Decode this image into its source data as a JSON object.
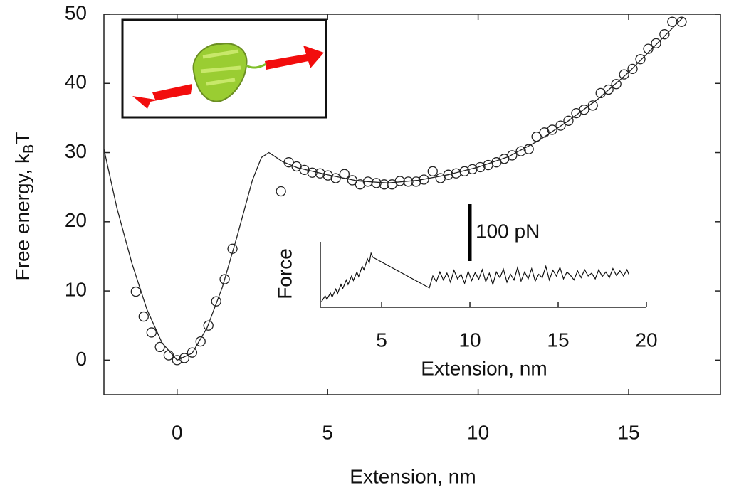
{
  "chart_data": [
    {
      "type": "scatter",
      "xlabel": "Extension, nm",
      "ylabel_parts": [
        "Free energy, k",
        "B",
        "T"
      ],
      "xlim": [
        -2.43,
        18.05
      ],
      "ylim": [
        -5,
        50
      ],
      "xticks": [
        0,
        5,
        10,
        15
      ],
      "yticks": [
        0,
        10,
        20,
        30,
        40,
        50
      ],
      "color": "#222222",
      "series": [
        {
          "type": "scatter",
          "x": [
            -1.37,
            -1.11,
            -0.85,
            -0.57,
            -0.28,
            0,
            0.24,
            0.5,
            0.78,
            1.04,
            1.3,
            1.58,
            1.84,
            3.45,
            3.71,
            3.97,
            4.23,
            4.49,
            4.75,
            5.01,
            5.27,
            5.56,
            5.82,
            6.08,
            6.34,
            6.62,
            6.88,
            7.14,
            7.4,
            7.68,
            7.94,
            8.2,
            8.49,
            8.75,
            9.01,
            9.27,
            9.55,
            9.81,
            10.07,
            10.33,
            10.61,
            10.87,
            11.13,
            11.42,
            11.68,
            11.94,
            12.2,
            12.46,
            12.74,
            13.0,
            13.26,
            13.52,
            13.81,
            14.07,
            14.33,
            14.59,
            14.85,
            15.13,
            15.39,
            15.65,
            15.91,
            16.19,
            16.45,
            16.76
          ],
          "values": [
            9.9,
            6.3,
            4.0,
            1.9,
            0.7,
            0,
            0.3,
            1.1,
            2.7,
            5.0,
            8.5,
            11.7,
            16.1,
            24.4,
            28.6,
            28.0,
            27.5,
            27.1,
            27.0,
            26.7,
            26.3,
            26.9,
            26.0,
            25.4,
            25.8,
            25.6,
            25.4,
            25.4,
            25.9,
            25.8,
            25.8,
            26.1,
            27.3,
            26.3,
            26.8,
            27.0,
            27.3,
            27.6,
            27.9,
            28.2,
            28.6,
            29.1,
            29.6,
            30.2,
            30.5,
            32.3,
            32.9,
            33.3,
            33.9,
            34.6,
            35.7,
            36.2,
            36.8,
            38.6,
            39.1,
            39.9,
            41.3,
            42.1,
            43.5,
            45.0,
            45.8,
            47.1,
            48.9,
            48.9
          ]
        },
        {
          "type": "line",
          "x": [
            -2.43,
            -2.0,
            -1.5,
            -1.0,
            -0.5,
            0,
            0.5,
            1.0,
            1.5,
            2.0,
            2.5,
            2.8,
            3.05,
            3.5,
            4.0,
            5.0,
            6.0,
            7.0,
            8.0,
            9.0,
            10.0,
            11.0,
            12.0,
            13.0,
            14.0,
            15.0,
            16.0,
            16.8
          ],
          "values": [
            30.5,
            22,
            14,
            7.3,
            2.5,
            0,
            1.0,
            4.7,
            10.5,
            18,
            26,
            29.3,
            30,
            28.7,
            27.8,
            26.8,
            25.9,
            25.6,
            26.0,
            26.8,
            27.9,
            29.4,
            31.7,
            34.6,
            37.8,
            41.6,
            46.0,
            49.5
          ]
        }
      ]
    },
    {
      "type": "line",
      "xlabel": "Extension, nm",
      "ylabel": "Force",
      "xlim": [
        1.53,
        20
      ],
      "ylim": [
        0,
        115
      ],
      "xticks": [
        5,
        10,
        15,
        20
      ],
      "scale_bar": {
        "value": 100,
        "label": "100 pN"
      },
      "color": "#111111",
      "x": [
        1.6,
        1.8,
        1.9,
        2.1,
        2.2,
        2.4,
        2.5,
        2.7,
        2.8,
        3.0,
        3.1,
        3.3,
        3.4,
        3.6,
        3.7,
        3.9,
        4.0,
        4.2,
        4.3,
        4.4,
        4.5,
        7.7,
        7.9,
        8.1,
        8.3,
        8.5,
        8.7,
        8.9,
        9.1,
        9.3,
        9.5,
        9.7,
        9.9,
        10.1,
        10.3,
        10.5,
        10.7,
        10.9,
        11.1,
        11.3,
        11.5,
        11.7,
        11.9,
        12.1,
        12.3,
        12.5,
        12.7,
        12.9,
        13.1,
        13.3,
        13.5,
        13.7,
        13.9,
        14.1,
        14.3,
        14.5,
        14.7,
        14.9,
        15.1,
        15.3,
        15.5,
        15.7,
        15.9,
        16.1,
        16.3,
        16.5,
        16.7,
        16.9,
        17.1,
        17.3,
        17.5,
        17.7,
        17.9,
        18.1,
        18.3,
        18.5,
        18.7,
        18.9,
        19.0
      ],
      "values": [
        10,
        20,
        14,
        25,
        18,
        32,
        24,
        40,
        33,
        48,
        40,
        55,
        47,
        62,
        54,
        72,
        66,
        85,
        78,
        95,
        88,
        34,
        55,
        45,
        62,
        48,
        60,
        44,
        65,
        50,
        58,
        42,
        63,
        47,
        61,
        49,
        66,
        45,
        60,
        40,
        62,
        52,
        67,
        44,
        58,
        48,
        70,
        46,
        62,
        50,
        68,
        46,
        58,
        52,
        72,
        48,
        65,
        55,
        70,
        50,
        62,
        56,
        48,
        64,
        52,
        66,
        55,
        60,
        50,
        66,
        54,
        62,
        52,
        68,
        56,
        64,
        55,
        66,
        58
      ]
    }
  ]
}
